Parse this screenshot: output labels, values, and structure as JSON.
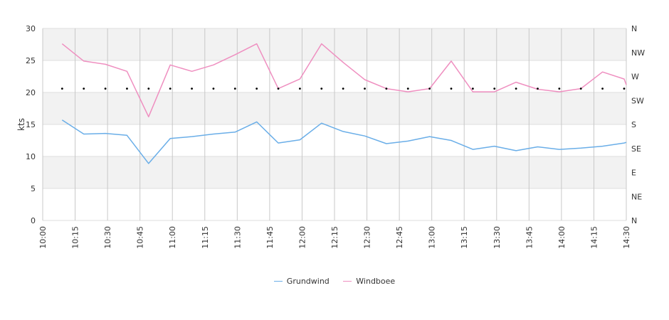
{
  "chart_data": {
    "type": "line",
    "ylabel": "kts",
    "ylim": [
      0,
      30
    ],
    "y_ticks": [
      "0",
      "5",
      "10",
      "15",
      "20",
      "25",
      "30"
    ],
    "y2_ticks": [
      "N",
      "NE",
      "E",
      "SE",
      "S",
      "SW",
      "W",
      "NW",
      "N"
    ],
    "x_range_minutes": [
      600,
      870
    ],
    "x_ticks": [
      "10:00",
      "10:15",
      "10:30",
      "10:45",
      "11:00",
      "11:15",
      "11:30",
      "11:45",
      "12:00",
      "12:15",
      "12:30",
      "12:45",
      "13:00",
      "13:15",
      "13:30",
      "13:45",
      "14:00",
      "14:15",
      "14:30"
    ],
    "grid": true,
    "legend_position": "bottom",
    "x": [
      "10:09",
      "10:19",
      "10:29",
      "10:39",
      "10:49",
      "10:59",
      "11:09",
      "11:19",
      "11:29",
      "11:39",
      "11:49",
      "11:59",
      "12:09",
      "12:19",
      "12:29",
      "12:39",
      "12:49",
      "12:59",
      "13:09",
      "13:19",
      "13:29",
      "13:39",
      "13:49",
      "13:59",
      "14:09",
      "14:19",
      "14:29",
      "14:30"
    ],
    "series": [
      {
        "name": "Grundwind",
        "color": "#6aaee8",
        "values": [
          15.7,
          13.5,
          13.6,
          13.3,
          8.9,
          12.8,
          13.1,
          13.5,
          13.8,
          15.4,
          12.1,
          12.6,
          15.2,
          13.9,
          13.2,
          12.0,
          12.4,
          13.1,
          12.5,
          11.1,
          11.6,
          10.9,
          11.5,
          11.1,
          11.3,
          11.6,
          12.1,
          12.2
        ]
      },
      {
        "name": "Windboee",
        "color": "#ef8fc0",
        "values": [
          27.6,
          24.9,
          24.4,
          23.3,
          16.2,
          24.3,
          23.3,
          24.3,
          25.9,
          27.6,
          20.6,
          22.1,
          27.6,
          24.7,
          22.0,
          20.6,
          20.1,
          20.6,
          24.9,
          20.1,
          20.1,
          21.6,
          20.5,
          20.1,
          20.6,
          23.2,
          22.1,
          21.2
        ]
      }
    ],
    "direction_marker_value": 20.6,
    "direction_marker_x": [
      "10:09",
      "10:19",
      "10:29",
      "10:39",
      "10:49",
      "10:59",
      "11:09",
      "11:19",
      "11:29",
      "11:39",
      "11:49",
      "11:59",
      "12:09",
      "12:19",
      "12:29",
      "12:39",
      "12:49",
      "12:59",
      "13:09",
      "13:19",
      "13:29",
      "13:39",
      "13:49",
      "13:59",
      "14:09",
      "14:19",
      "14:29"
    ]
  }
}
